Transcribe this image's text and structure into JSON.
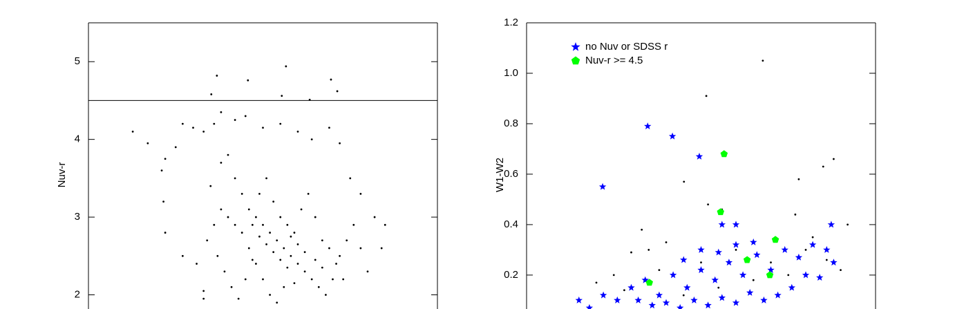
{
  "chart_data": [
    {
      "type": "scatter",
      "ylabel": "Nuv-r",
      "ylim": [
        1.8,
        5.5
      ],
      "yticks": [
        2,
        3,
        4,
        5
      ],
      "xlim": [
        0,
        100
      ],
      "hline": 4.5,
      "series": [
        {
          "color": "#000000",
          "marker": "dot",
          "x": [
            36.8,
            45.7,
            56.6,
            35.2,
            55.4,
            63.4,
            69.5,
            71.3,
            12.7,
            17,
            21,
            22,
            21.5,
            25,
            27,
            30,
            33,
            36,
            38,
            42,
            45,
            50,
            55,
            60,
            64,
            69,
            72,
            75,
            78,
            82,
            85,
            84,
            22,
            27,
            31,
            33,
            33,
            35,
            38,
            40,
            42,
            44,
            46,
            48,
            50,
            52,
            54,
            56,
            58,
            60,
            62,
            64,
            66,
            68,
            70,
            72,
            74,
            76,
            78,
            80,
            46,
            48,
            50,
            52,
            54,
            56,
            44,
            42,
            40,
            38,
            36,
            34,
            37,
            39,
            41,
            43,
            45,
            47,
            49,
            51,
            53,
            55,
            57,
            59,
            61,
            63,
            65,
            67,
            69,
            71,
            73,
            60,
            58,
            62,
            55,
            57,
            59,
            65,
            67,
            53,
            51,
            49,
            47
          ],
          "values": [
            4.82,
            4.76,
            4.94,
            4.58,
            4.56,
            4.51,
            4.77,
            4.62,
            4.1,
            3.95,
            3.6,
            3.75,
            3.2,
            3.9,
            4.2,
            4.15,
            4.1,
            4.2,
            4.35,
            4.25,
            4.3,
            4.15,
            4.2,
            4.1,
            4.0,
            4.15,
            3.95,
            3.5,
            3.3,
            3.0,
            2.9,
            2.6,
            2.8,
            2.5,
            2.4,
            2.05,
            1.95,
            3.4,
            3.7,
            3.8,
            3.5,
            3.3,
            3.1,
            3.0,
            2.9,
            2.8,
            2.7,
            2.6,
            2.5,
            2.4,
            2.3,
            2.2,
            2.1,
            2.0,
            2.2,
            2.5,
            2.7,
            2.9,
            2.6,
            2.3,
            2.6,
            2.4,
            2.2,
            2.0,
            1.9,
            2.1,
            2.8,
            2.9,
            3.0,
            3.1,
            2.9,
            2.7,
            2.5,
            2.3,
            2.1,
            1.95,
            2.2,
            2.9,
            3.3,
            3.5,
            3.2,
            3.0,
            2.9,
            2.8,
            3.1,
            3.3,
            3.0,
            2.7,
            2.6,
            2.4,
            2.2,
            2.65,
            2.75,
            2.55,
            2.45,
            2.35,
            2.15,
            2.45,
            2.35,
            2.55,
            2.65,
            2.75,
            2.45
          ]
        }
      ]
    },
    {
      "type": "scatter",
      "ylabel": "W1-W2",
      "ylim": [
        0.06,
        1.2
      ],
      "yticks": [
        0.2,
        0.4,
        0.6,
        0.8,
        {
          "value": 1.0,
          "label": "1.0"
        },
        1.2
      ],
      "xlim": [
        0,
        100
      ],
      "legend": "upper left",
      "series": [
        {
          "color": "#000000",
          "marker": "dot",
          "x": [
            67.7,
            51.5,
            45.1,
            78,
            85,
            88,
            92,
            30,
            33,
            56,
            52,
            77,
            15,
            20,
            25,
            35,
            40,
            60,
            70,
            80,
            86,
            90,
            45,
            55,
            65,
            75,
            50,
            28,
            38,
            82
          ],
          "values": [
            1.05,
            0.91,
            0.57,
            0.58,
            0.63,
            0.66,
            0.4,
            0.29,
            0.38,
            0.46,
            0.48,
            0.44,
            0.1,
            0.17,
            0.2,
            0.3,
            0.33,
            0.3,
            0.25,
            0.3,
            0.26,
            0.22,
            0.12,
            0.15,
            0.18,
            0.2,
            0.25,
            0.14,
            0.22,
            0.35
          ]
        },
        {
          "name": "no Nuv or SDSS r",
          "color": "#0000ff",
          "marker": "star",
          "x": [
            15,
            18,
            22,
            26,
            30,
            34,
            38,
            42,
            46,
            50,
            54,
            58,
            62,
            66,
            70,
            74,
            78,
            82,
            86,
            80,
            76,
            72,
            68,
            64,
            60,
            56,
            52,
            48,
            44,
            40,
            36,
            32,
            55,
            60,
            65,
            84,
            88,
            34.7,
            41.8,
            49.5,
            21.8,
            87.3,
            56,
            60,
            45,
            50
          ],
          "values": [
            0.1,
            0.07,
            0.12,
            0.1,
            0.15,
            0.18,
            0.12,
            0.2,
            0.15,
            0.22,
            0.18,
            0.25,
            0.2,
            0.28,
            0.22,
            0.3,
            0.27,
            0.32,
            0.3,
            0.2,
            0.15,
            0.12,
            0.1,
            0.13,
            0.09,
            0.11,
            0.08,
            0.1,
            0.07,
            0.09,
            0.08,
            0.1,
            0.29,
            0.32,
            0.33,
            0.19,
            0.25,
            0.79,
            0.75,
            0.67,
            0.55,
            0.4,
            0.4,
            0.4,
            0.26,
            0.3
          ]
        },
        {
          "name": "Nuv-r >= 4.5",
          "color": "#00ff00",
          "marker": "pentagon",
          "x": [
            56.6,
            55.6,
            71.3,
            63.2,
            69.7,
            35.2
          ],
          "values": [
            0.68,
            0.45,
            0.34,
            0.26,
            0.2,
            0.17
          ]
        }
      ]
    }
  ]
}
